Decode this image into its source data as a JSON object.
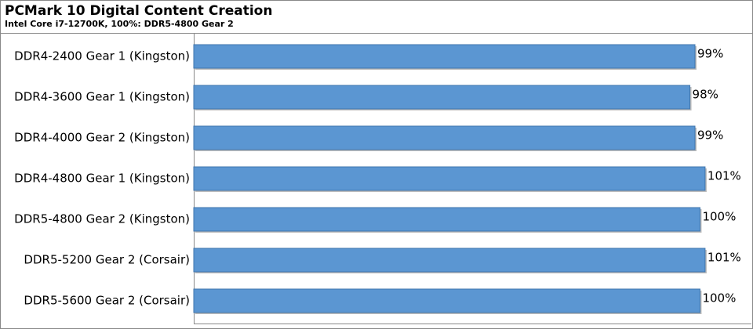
{
  "chart_data": {
    "type": "barh",
    "title": "PCMark 10 Digital Content Creation",
    "subtitle": "Intel Core i7-12700K, 100%: DDR5-4800 Gear 2",
    "categories": [
      "DDR4-2400 Gear 1 (Kingston)",
      "DDR4-3600 Gear 1 (Kingston)",
      "DDR4-4000 Gear 2 (Kingston)",
      "DDR4-4800 Gear 1 (Kingston)",
      "DDR5-4800 Gear 2 (Kingston)",
      "DDR5-5200 Gear 2 (Corsair)",
      "DDR5-5600 Gear 2 (Corsair)"
    ],
    "values": [
      99,
      98,
      99,
      101,
      100,
      101,
      100
    ],
    "value_labels": [
      "99%",
      "98%",
      "99%",
      "101%",
      "100%",
      "101%",
      "100%"
    ],
    "color": "#5b96d2",
    "xlim": [
      0,
      110
    ]
  }
}
